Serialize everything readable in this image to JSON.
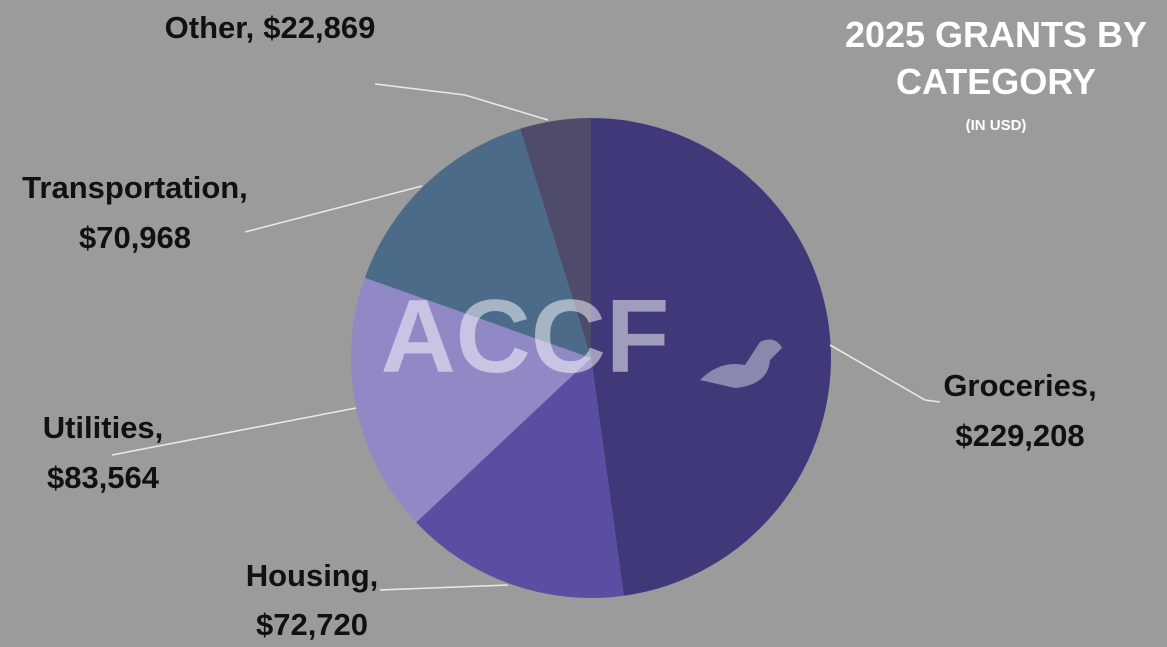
{
  "chart_data": {
    "type": "pie",
    "title": "2025 GRANTS BY CATEGORY",
    "subtitle": "(IN USD)",
    "watermark": "ACCF",
    "categories": [
      "Groceries,",
      "Housing,",
      "Utilities,",
      "Transportation,",
      "Other,"
    ],
    "values": [
      229208,
      72720,
      83564,
      70968,
      22869
    ],
    "value_labels": [
      "$229,208",
      "$72,720",
      "$83,564",
      "$70,968",
      "$22,869"
    ],
    "colors": [
      "#3f3979",
      "#5a4ea2",
      "#9089c6",
      "#4b6b89",
      "#4f4b6b"
    ]
  }
}
